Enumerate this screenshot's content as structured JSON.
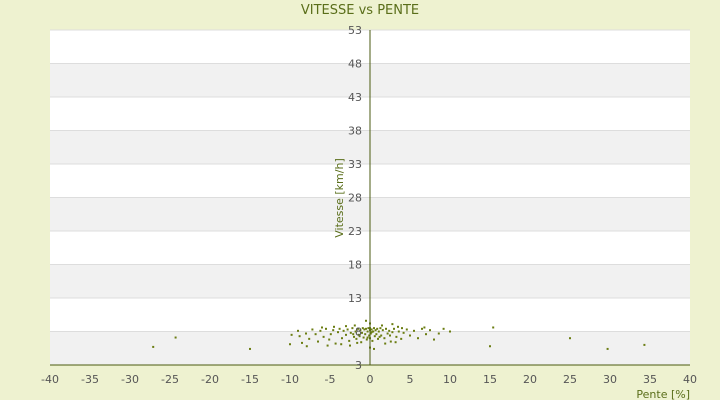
{
  "chart_data": {
    "type": "scatter",
    "title": "VITESSE vs PENTE",
    "xlabel": "Pente [%]",
    "ylabel": "Vitesse [km/h]",
    "xlim": [
      -40,
      40
    ],
    "ylim": [
      3,
      53
    ],
    "xticks": [
      "-40",
      "-35",
      "-30",
      "-25",
      "-20",
      "-15",
      "-10",
      "-5",
      "0",
      "5",
      "10",
      "15",
      "20",
      "25",
      "30",
      "35",
      "40"
    ],
    "yticks": [
      "3",
      "8",
      "13",
      "18",
      "23",
      "28",
      "33",
      "38",
      "43",
      "48",
      "53"
    ],
    "grid": "horizontal-bands",
    "colors": {
      "background": "#eef2d0",
      "plot_band_a": "#ffffff",
      "plot_band_b": "#f1f1f1",
      "gridline": "#dddddd",
      "axis": "#4a5a10",
      "point": "#6b7d12"
    },
    "points": [
      [
        -27.1,
        5.7
      ],
      [
        -24.3,
        7.1
      ],
      [
        -15.0,
        5.4
      ],
      [
        -10.0,
        6.1
      ],
      [
        -9.8,
        7.5
      ],
      [
        -9.0,
        8.1
      ],
      [
        -8.5,
        6.3
      ],
      [
        -8.0,
        7.7
      ],
      [
        -7.6,
        6.9
      ],
      [
        -7.2,
        8.3
      ],
      [
        -6.8,
        7.6
      ],
      [
        -6.5,
        6.5
      ],
      [
        -6.2,
        8.1
      ],
      [
        -5.8,
        7.2
      ],
      [
        -5.5,
        8.4
      ],
      [
        -5.1,
        6.8
      ],
      [
        -4.9,
        7.6
      ],
      [
        -4.6,
        8.2
      ],
      [
        -4.3,
        6.2
      ],
      [
        -4.0,
        7.9
      ],
      [
        -3.8,
        8.4
      ],
      [
        -3.5,
        7.0
      ],
      [
        -3.3,
        8.1
      ],
      [
        -3.0,
        7.5
      ],
      [
        -2.8,
        8.3
      ],
      [
        -2.6,
        6.6
      ],
      [
        -2.4,
        7.8
      ],
      [
        -2.2,
        8.5
      ],
      [
        -2.0,
        7.2
      ],
      [
        -1.8,
        8.0
      ],
      [
        -1.7,
        6.9
      ],
      [
        -1.5,
        8.4
      ],
      [
        -1.4,
        7.5
      ],
      [
        -1.2,
        8.2
      ],
      [
        -1.1,
        6.4
      ],
      [
        -1.0,
        7.8
      ],
      [
        -0.9,
        8.5
      ],
      [
        -0.8,
        7.1
      ],
      [
        -0.7,
        8.3
      ],
      [
        -0.6,
        7.6
      ],
      [
        -0.5,
        8.4
      ],
      [
        -0.4,
        6.8
      ],
      [
        -0.3,
        8.0
      ],
      [
        -0.2,
        8.5
      ],
      [
        -0.1,
        7.4
      ],
      [
        0.0,
        8.2
      ],
      [
        0.0,
        7.0
      ],
      [
        0.0,
        8.5
      ],
      [
        0.1,
        7.7
      ],
      [
        0.2,
        8.3
      ],
      [
        0.3,
        6.6
      ],
      [
        0.4,
        8.0
      ],
      [
        0.5,
        8.5
      ],
      [
        0.6,
        7.3
      ],
      [
        0.7,
        8.2
      ],
      [
        0.8,
        7.6
      ],
      [
        0.9,
        8.4
      ],
      [
        1.0,
        6.9
      ],
      [
        1.1,
        8.0
      ],
      [
        1.3,
        8.5
      ],
      [
        1.4,
        7.4
      ],
      [
        1.6,
        8.2
      ],
      [
        1.8,
        7.0
      ],
      [
        2.0,
        8.4
      ],
      [
        2.2,
        7.7
      ],
      [
        2.4,
        8.1
      ],
      [
        2.6,
        6.5
      ],
      [
        2.8,
        7.9
      ],
      [
        3.0,
        8.4
      ],
      [
        3.3,
        7.2
      ],
      [
        3.6,
        8.0
      ],
      [
        3.9,
        6.9
      ],
      [
        4.2,
        7.8
      ],
      [
        4.6,
        8.3
      ],
      [
        5.0,
        7.4
      ],
      [
        5.5,
        8.1
      ],
      [
        6.0,
        7.0
      ],
      [
        6.5,
        8.4
      ],
      [
        7.0,
        7.6
      ],
      [
        7.5,
        8.2
      ],
      [
        8.0,
        6.8
      ],
      [
        8.6,
        7.7
      ],
      [
        9.2,
        8.4
      ],
      [
        10.0,
        8.0
      ],
      [
        -2.5,
        5.9
      ],
      [
        -1.6,
        6.3
      ],
      [
        0.0,
        5.6
      ],
      [
        0.5,
        5.4
      ],
      [
        1.9,
        6.2
      ],
      [
        3.2,
        6.4
      ],
      [
        -3.6,
        6.1
      ],
      [
        -5.3,
        5.9
      ],
      [
        -7.9,
        5.8
      ],
      [
        15.0,
        5.8
      ],
      [
        15.4,
        8.6
      ],
      [
        25.0,
        7.0
      ],
      [
        29.7,
        5.4
      ],
      [
        34.3,
        6.0
      ],
      [
        -0.3,
        7.1
      ],
      [
        0.2,
        7.9
      ],
      [
        -1.3,
        7.3
      ],
      [
        1.2,
        7.2
      ],
      [
        2.5,
        7.4
      ],
      [
        -2.1,
        7.6
      ],
      [
        4.0,
        8.5
      ],
      [
        6.8,
        8.6
      ],
      [
        -6.0,
        8.6
      ],
      [
        -8.8,
        7.3
      ],
      [
        0.0,
        9.2
      ],
      [
        1.5,
        8.9
      ],
      [
        -0.5,
        9.6
      ],
      [
        -3.0,
        8.8
      ],
      [
        3.5,
        8.7
      ],
      [
        -4.5,
        8.7
      ],
      [
        2.8,
        9.1
      ],
      [
        -1.9,
        8.9
      ]
    ]
  }
}
